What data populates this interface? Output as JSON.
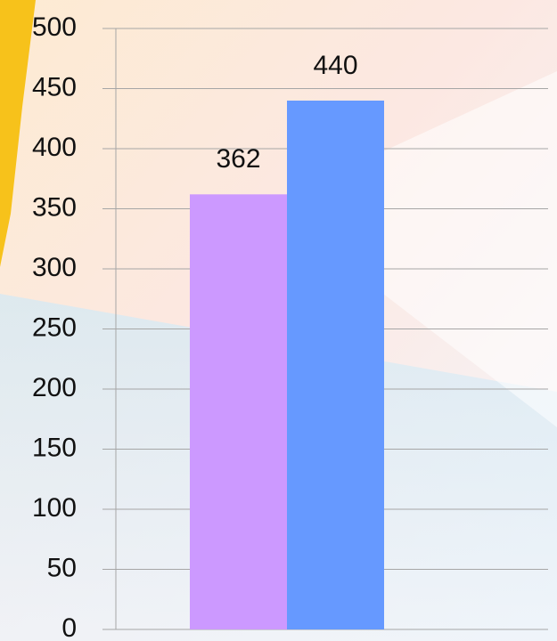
{
  "chart_data": {
    "type": "bar",
    "categories": [
      null,
      null
    ],
    "values": [
      362,
      440
    ],
    "colors": [
      "#cc99ff",
      "#6699ff"
    ],
    "ylim": [
      0,
      500
    ],
    "yticks": [
      0,
      50,
      100,
      150,
      200,
      250,
      300,
      350,
      400,
      450,
      500
    ],
    "grid": true
  }
}
